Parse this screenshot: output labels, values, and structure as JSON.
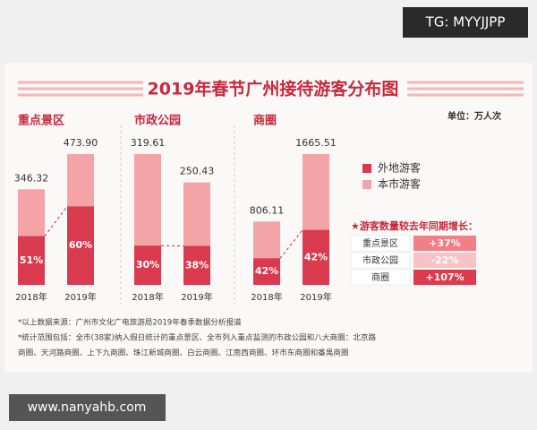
{
  "watermark": "TG: MYYJJPP",
  "title": "2019年春节广州接待游客分布图",
  "unit": "单位：万人次",
  "legend": [
    {
      "name": "外地游客",
      "color": "#d93a4e"
    },
    {
      "name": "本市游客",
      "color": "#f4a3a6"
    }
  ],
  "chart_data": [
    {
      "type": "bar",
      "title": "重点景区",
      "categories": [
        "2018年",
        "2019年"
      ],
      "values": [
        346.32,
        473.9
      ],
      "value_labels": [
        "346.32",
        "473.90"
      ],
      "shares": [
        51,
        60
      ],
      "share_labels": [
        "51%",
        "60%"
      ]
    },
    {
      "type": "bar",
      "title": "市政公园",
      "categories": [
        "2018年",
        "2019年"
      ],
      "values": [
        319.61,
        250.43
      ],
      "shares": [
        30,
        38
      ],
      "share_labels": [
        "30%",
        "38%"
      ]
    },
    {
      "type": "bar",
      "title": "商圈",
      "categories": [
        "2018年",
        "2019年"
      ],
      "values": [
        806.11,
        1665.51
      ],
      "shares": [
        42,
        42
      ],
      "share_labels": [
        "42%",
        "42%"
      ]
    }
  ],
  "growth": {
    "title": "★游客数量较去年同期增长：",
    "rows": [
      {
        "name": "重点景区",
        "value": "+37%"
      },
      {
        "name": "市政公园",
        "value": "-22%"
      },
      {
        "name": "商圈",
        "value": "+107%"
      }
    ]
  },
  "notes": [
    "*以上数据来源：广州市文化广电旅游局2019年春季数据分析报道",
    "*统计范围包括：全市(38家)纳入假日统计的重点景区、全市列入重点监测的市政公园和八大商圈：北京路",
    "商圈、天河路商圈、上下九商圈、珠江新城商圈、白云商圈、江南西商圈、环市东商圈和番禺商圈"
  ],
  "footer": "www.nanyahb.com"
}
